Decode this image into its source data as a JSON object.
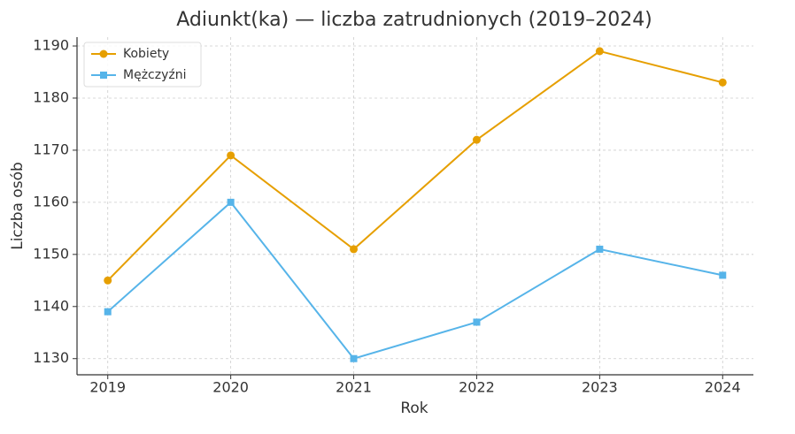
{
  "chart_data": {
    "type": "line",
    "title": "Adiunkt(ka) — liczba zatrudnionych (2019–2024)",
    "x_label": "Rok",
    "y_label": "Liczba osób",
    "x": [
      2019,
      2020,
      2021,
      2022,
      2023,
      2024
    ],
    "series": [
      {
        "name": "Kobiety",
        "color": "#e69f00",
        "marker": "circle",
        "values": [
          1145,
          1169,
          1151,
          1172,
          1189,
          1183
        ]
      },
      {
        "name": "Mężczyźni",
        "color": "#56b4e9",
        "marker": "square",
        "values": [
          1139,
          1160,
          1130,
          1137,
          1151,
          1146
        ]
      }
    ],
    "xlim": [
      2018.75,
      2024.25
    ],
    "xticks": [
      2019,
      2020,
      2021,
      2022,
      2023,
      2024
    ],
    "ylim": [
      1126.9,
      1191.7
    ],
    "yticks": [
      1130,
      1140,
      1150,
      1160,
      1170,
      1180,
      1190
    ],
    "grid": true,
    "legend": "upper-left"
  }
}
